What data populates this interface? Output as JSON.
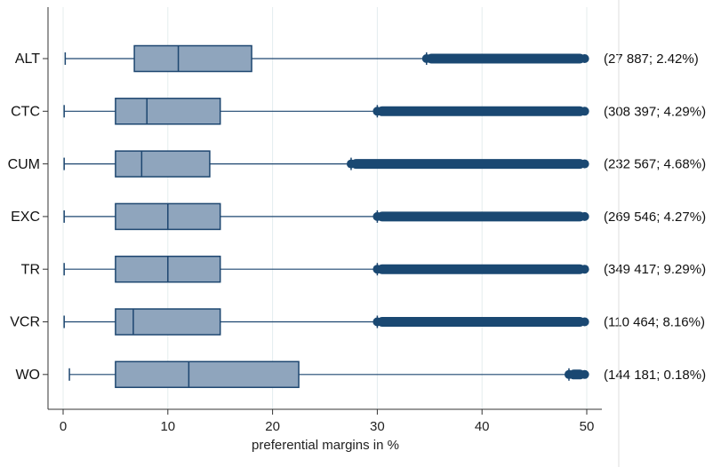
{
  "chart_data": {
    "type": "boxplot",
    "orientation": "horizontal",
    "xlabel": "preferential margins in %",
    "xlim": [
      0,
      50
    ],
    "xticks": [
      0,
      10,
      20,
      30,
      40,
      50
    ],
    "grid": "vertical",
    "categories": [
      "ALT",
      "CTC",
      "CUM",
      "EXC",
      "TR",
      "VCR",
      "WO"
    ],
    "boxes": [
      {
        "category": "ALT",
        "whisker_low": 0.2,
        "q1": 6.8,
        "median": 11.0,
        "q3": 18.0,
        "whisker_high": 34.7,
        "outliers_from": 34.7,
        "outliers_to": 49.8,
        "annotation": "(27 887; 2.42%)"
      },
      {
        "category": "CTC",
        "whisker_low": 0.1,
        "q1": 5.0,
        "median": 8.0,
        "q3": 15.0,
        "whisker_high": 30.0,
        "outliers_from": 30.0,
        "outliers_to": 49.8,
        "annotation": "(308 397; 4.29%)"
      },
      {
        "category": "CUM",
        "whisker_low": 0.1,
        "q1": 5.0,
        "median": 7.5,
        "q3": 14.0,
        "whisker_high": 27.5,
        "outliers_from": 27.5,
        "outliers_to": 49.8,
        "annotation": "(232 567; 4.68%)"
      },
      {
        "category": "EXC",
        "whisker_low": 0.1,
        "q1": 5.0,
        "median": 10.0,
        "q3": 15.0,
        "whisker_high": 30.0,
        "outliers_from": 30.0,
        "outliers_to": 49.8,
        "annotation": "(269 546; 4.27%)"
      },
      {
        "category": "TR",
        "whisker_low": 0.1,
        "q1": 5.0,
        "median": 10.0,
        "q3": 15.0,
        "whisker_high": 30.0,
        "outliers_from": 30.0,
        "outliers_to": 49.8,
        "annotation": "(349 417; 9.29%)"
      },
      {
        "category": "VCR",
        "whisker_low": 0.1,
        "q1": 5.0,
        "median": 6.7,
        "q3": 15.0,
        "whisker_high": 30.0,
        "outliers_from": 30.0,
        "outliers_to": 49.8,
        "annotation": "(110 464; 8.16%)"
      },
      {
        "category": "WO",
        "whisker_low": 0.6,
        "q1": 5.0,
        "median": 12.0,
        "q3": 22.5,
        "whisker_high": 48.3,
        "outliers_from": 48.3,
        "outliers_to": 49.8,
        "annotation": "(144 181; 0.18%)"
      }
    ],
    "colors": {
      "box_fill": "#8fa5bd",
      "box_stroke": "#1d4670",
      "outlier": "#1a4872",
      "grid": "#e4ecee"
    }
  }
}
